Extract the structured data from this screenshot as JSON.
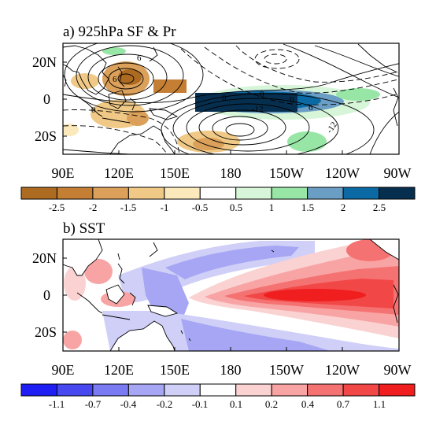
{
  "chart_data": [
    {
      "type": "heatmap",
      "title": "a) 925hPa SF & Pr",
      "x_ticks": [
        "90E",
        "120E",
        "150E",
        "180",
        "150W",
        "120W",
        "90W"
      ],
      "y_ticks": [
        "20N",
        "0",
        "20S"
      ],
      "x_range_lon_east": [
        90,
        270
      ],
      "y_range_lat": [
        -30,
        30
      ],
      "contour_labels": [
        "6",
        "6",
        "0",
        "0",
        "0",
        "0",
        "6",
        "-12",
        "-12"
      ],
      "colorbar": {
        "labels": [
          "-2.5",
          "-2",
          "-1.5",
          "-1",
          "-0.5",
          "0.5",
          "1",
          "1.5",
          "2",
          "2.5"
        ],
        "colors": [
          "#ad6a21",
          "#c57f35",
          "#dba05a",
          "#f0c987",
          "#fbe9bc",
          "#ffffff",
          "#d7f5d8",
          "#98e6a6",
          "#6b9ec4",
          "#0b6aa3",
          "#062f4f"
        ]
      },
      "features": {
        "negative_precip_centers": [
          {
            "lon": 120,
            "lat": 11
          },
          {
            "lon": 130,
            "lat": -6
          },
          {
            "lon": 165,
            "lat": -25
          }
        ],
        "positive_precip_band": {
          "lon": [
            160,
            245
          ],
          "lat": [
            -6,
            7
          ]
        },
        "streamfunction_extrema": [
          {
            "lon": 122,
            "lat": 12,
            "sign": "+"
          },
          {
            "lon": 185,
            "lat": -16,
            "sign": "+"
          }
        ]
      }
    },
    {
      "type": "heatmap",
      "title": "b) SST",
      "x_ticks": [
        "90E",
        "120E",
        "150E",
        "180",
        "150W",
        "120W",
        "90W"
      ],
      "y_ticks": [
        "20N",
        "0",
        "20S"
      ],
      "x_range_lon_east": [
        90,
        270
      ],
      "y_range_lat": [
        -30,
        30
      ],
      "colorbar": {
        "labels": [
          "-1.1",
          "-0.7",
          "-0.4",
          "-0.2",
          "-0.1",
          "0.1",
          "0.2",
          "0.4",
          "0.7",
          "1.1"
        ],
        "colors": [
          "#1f1ff5",
          "#4848f0",
          "#7a7af2",
          "#a6a6f4",
          "#cfcff8",
          "#ffffff",
          "#fbd2d2",
          "#f8a4a4",
          "#f57272",
          "#f24747",
          "#f01e1e"
        ]
      },
      "features": {
        "warm_tongue": {
          "lon": [
            185,
            270
          ],
          "lat": [
            -10,
            8
          ],
          "peak_lon": 235
        },
        "cold_horseshoe_west": {
          "lon": [
            140,
            200
          ],
          "lat": [
            -25,
            25
          ]
        }
      }
    }
  ]
}
